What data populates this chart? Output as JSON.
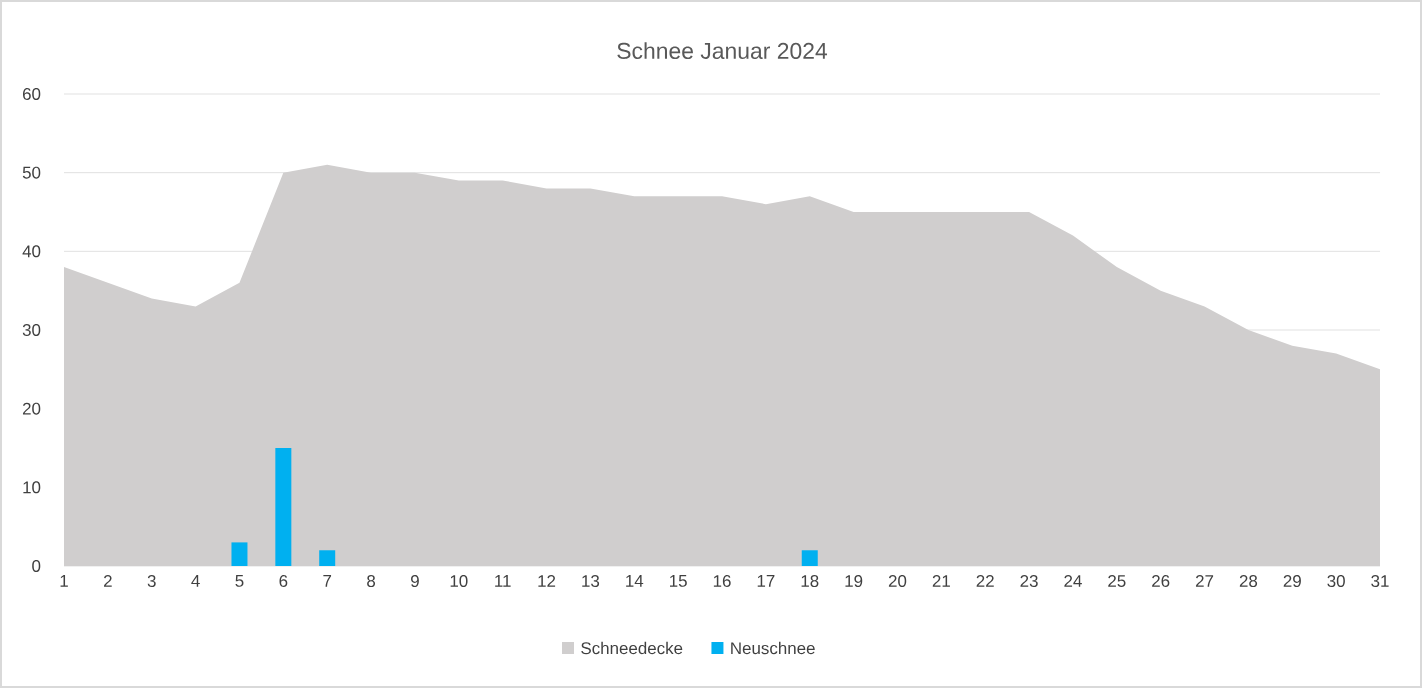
{
  "chart_data": {
    "type": "area",
    "title": "Schnee Januar 2024",
    "categories": [
      "1",
      "2",
      "3",
      "4",
      "5",
      "6",
      "7",
      "8",
      "9",
      "10",
      "11",
      "12",
      "13",
      "14",
      "15",
      "16",
      "17",
      "18",
      "19",
      "20",
      "21",
      "22",
      "23",
      "24",
      "25",
      "26",
      "27",
      "28",
      "29",
      "30",
      "31"
    ],
    "series": [
      {
        "name": "Schneedecke",
        "color": "#d0cece",
        "values": [
          38,
          36,
          34,
          33,
          36,
          50,
          51,
          50,
          50,
          49,
          49,
          48,
          48,
          47,
          47,
          47,
          46,
          47,
          45,
          45,
          45,
          45,
          45,
          42,
          38,
          35,
          33,
          30,
          28,
          27,
          25
        ]
      },
      {
        "name": "Neuschnee",
        "type": "bar",
        "color": "#00b0f0",
        "values": [
          0,
          0,
          0,
          0,
          3,
          15,
          2,
          0,
          0,
          0,
          0,
          0,
          0,
          0,
          0,
          0,
          0,
          2,
          0,
          0,
          0,
          0,
          0,
          0,
          0,
          0,
          0,
          0,
          0,
          0,
          0
        ]
      }
    ],
    "ylim": [
      0,
      60
    ],
    "yticks": [
      0,
      10,
      20,
      30,
      40,
      50,
      60
    ],
    "grid": "y",
    "legend": "bottom"
  }
}
